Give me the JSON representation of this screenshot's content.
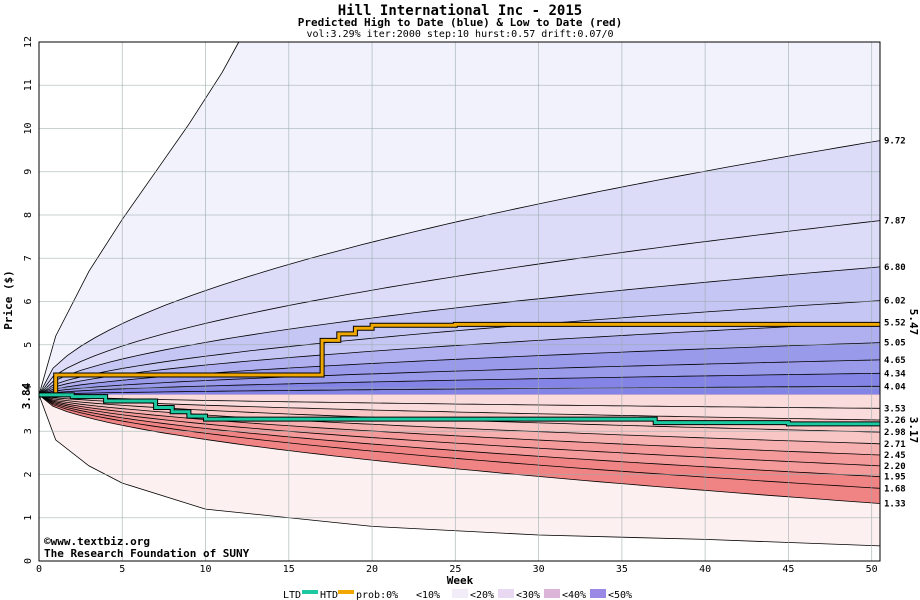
{
  "chart_data": {
    "type": "area",
    "title": "Hill International Inc - 2015",
    "subtitle": "Predicted High to Date (blue) &  Low to Date (red)",
    "params": "vol:3.29% iter:2000 step:10 hurst:0.57 drift:0.07/0",
    "xlabel": "Week",
    "ylabel": "Price ($)",
    "xlim": [
      0,
      50.5
    ],
    "ylim": [
      0,
      12
    ],
    "x_ticks": [
      0,
      5,
      10,
      15,
      20,
      25,
      30,
      35,
      40,
      45,
      50
    ],
    "y_ticks": [
      0,
      1,
      2,
      3,
      4,
      5,
      6,
      7,
      8,
      9,
      10,
      11,
      12
    ],
    "grid": true,
    "start_price": "3.84",
    "end_labels": [
      "9.72",
      "7.87",
      "6.80",
      "6.02",
      "5.52",
      "5.05",
      "4.65",
      "4.34",
      "4.04",
      "3.53",
      "3.26",
      "2.98",
      "2.71",
      "2.45",
      "2.20",
      "1.95",
      "1.68",
      "1.33"
    ],
    "high_quantiles_at_end": [
      9.72,
      7.87,
      6.8,
      6.02,
      5.52,
      5.05,
      4.65,
      4.34,
      4.04
    ],
    "low_quantiles_at_end": [
      3.53,
      3.26,
      2.98,
      2.71,
      2.45,
      2.2,
      1.95,
      1.68,
      1.33
    ],
    "htd_label": "5.47",
    "ltd_label": "3.17",
    "htd_path": {
      "x": [
        0,
        1,
        16.5,
        17,
        18,
        19,
        20,
        21,
        24,
        25,
        50.5
      ],
      "y": [
        3.84,
        4.3,
        4.3,
        5.1,
        5.25,
        5.38,
        5.45,
        5.45,
        5.45,
        5.47,
        5.47
      ]
    },
    "ltd_path": {
      "x": [
        0,
        2,
        4,
        7,
        8,
        9,
        10,
        12,
        20,
        37,
        38,
        45,
        46,
        50.5
      ],
      "y": [
        3.84,
        3.8,
        3.7,
        3.55,
        3.45,
        3.35,
        3.28,
        3.28,
        3.28,
        3.2,
        3.2,
        3.17,
        3.17,
        3.17
      ]
    },
    "outer_high_envelope": {
      "x": [
        0,
        1,
        3,
        5,
        7,
        9,
        11,
        12
      ],
      "y": [
        3.84,
        5.2,
        6.7,
        7.9,
        9.0,
        10.1,
        11.3,
        12
      ]
    },
    "outer_low_envelope": {
      "x": [
        0,
        1,
        3,
        5,
        10,
        20,
        30,
        40,
        50.5
      ],
      "y": [
        3.84,
        2.8,
        2.2,
        1.8,
        1.2,
        0.8,
        0.6,
        0.5,
        0.35
      ]
    },
    "colors": {
      "htd": "#f0a800",
      "ltd": "#1cc8a0",
      "high_axis_label": "#b8860b",
      "low_axis_label": "#2e8b57",
      "blue_bands": [
        "#f2f2fd",
        "#dcdcf8",
        "#c6c6f4",
        "#b0b0f0",
        "#9a9aeb",
        "#8484e6"
      ],
      "red_bands": [
        "#fdf0f0",
        "#fbdcdc",
        "#f9c6c6",
        "#f6b0b0",
        "#f49a9a",
        "#f08484"
      ]
    }
  },
  "footer": {
    "website": "©www.textbiz.org",
    "org": "The Research Foundation of SUNY"
  },
  "legend": {
    "ltd": "LTD",
    "htd": "HTD",
    "prob": "prob:0%",
    "bins": [
      "<10%",
      "<20%",
      "<30%",
      "<40%",
      "<50%"
    ]
  }
}
